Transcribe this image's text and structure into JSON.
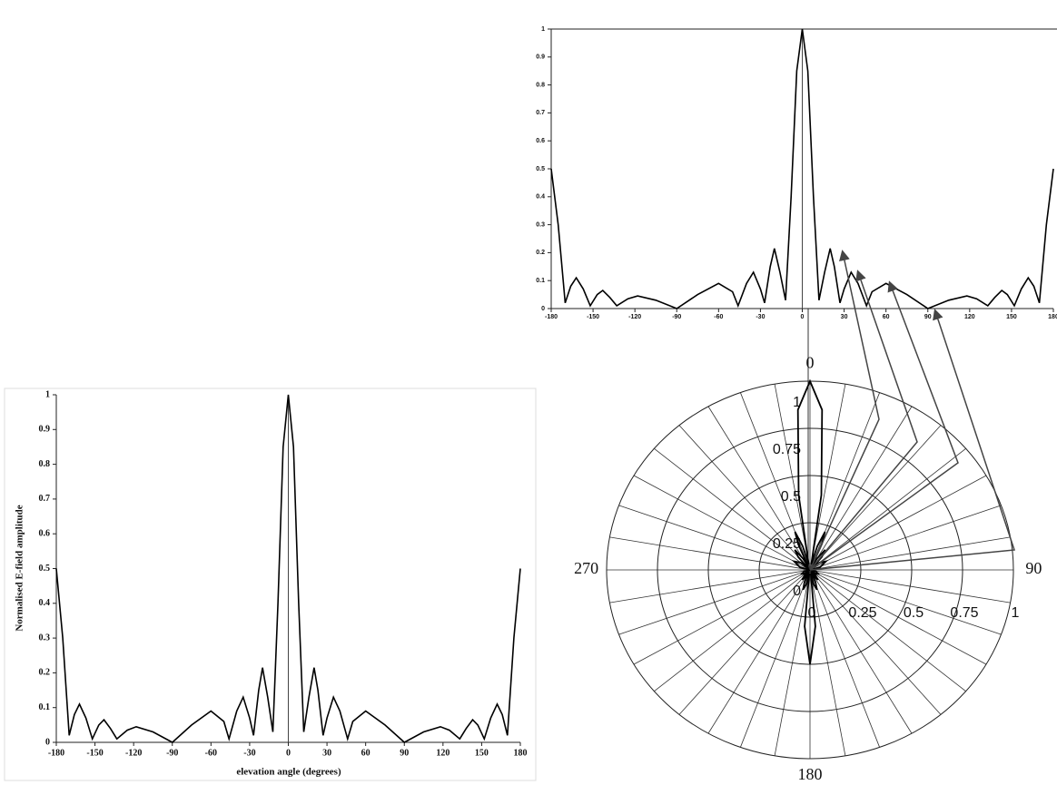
{
  "chart_data": [
    {
      "type": "line",
      "y_label": "Normalised E-field amplitude",
      "x_label": "elevation angle (degrees)",
      "x": [
        -180,
        -175,
        -170,
        -166,
        -162,
        -157,
        -152,
        -147,
        -143,
        -138,
        -133,
        -125,
        -118,
        -105,
        -90,
        -75,
        -60,
        -50,
        -46,
        -40,
        -35,
        -30,
        -27,
        -23,
        -20,
        -16,
        -12,
        -8,
        -4,
        0,
        4,
        8,
        12,
        16,
        20,
        23,
        27,
        30,
        35,
        40,
        46,
        50,
        60,
        75,
        90,
        105,
        118,
        125,
        133,
        138,
        143,
        147,
        152,
        157,
        162,
        166,
        170,
        175,
        180
      ],
      "values": [
        0.5,
        0.3,
        0.02,
        0.08,
        0.11,
        0.07,
        0.01,
        0.05,
        0.065,
        0.04,
        0.01,
        0.035,
        0.045,
        0.03,
        0.0,
        0.05,
        0.09,
        0.06,
        0.01,
        0.09,
        0.13,
        0.07,
        0.02,
        0.15,
        0.215,
        0.13,
        0.03,
        0.4,
        0.85,
        1,
        0.85,
        0.4,
        0.03,
        0.13,
        0.215,
        0.15,
        0.02,
        0.07,
        0.13,
        0.09,
        0.01,
        0.06,
        0.09,
        0.05,
        0.0,
        0.03,
        0.045,
        0.035,
        0.01,
        0.04,
        0.065,
        0.05,
        0.01,
        0.07,
        0.11,
        0.08,
        0.02,
        0.3,
        0.5
      ],
      "color": "#000000",
      "xlim": [
        -180,
        180
      ],
      "ylim": [
        0,
        1
      ],
      "xticks": [
        -180,
        -150,
        -120,
        -90,
        -60,
        -30,
        0,
        30,
        60,
        90,
        120,
        150,
        180
      ],
      "yticks": [
        0,
        0.1,
        0.2,
        0.3,
        0.4,
        0.5,
        0.6,
        0.7,
        0.8,
        0.9,
        1
      ]
    },
    {
      "type": "line",
      "x": [
        -180,
        -175,
        -170,
        -166,
        -162,
        -157,
        -152,
        -147,
        -143,
        -138,
        -133,
        -125,
        -118,
        -105,
        -90,
        -75,
        -60,
        -50,
        -46,
        -40,
        -35,
        -30,
        -27,
        -23,
        -20,
        -16,
        -12,
        -8,
        -4,
        0,
        4,
        8,
        12,
        16,
        20,
        23,
        27,
        30,
        35,
        40,
        46,
        50,
        60,
        75,
        90,
        105,
        118,
        125,
        133,
        138,
        143,
        147,
        152,
        157,
        162,
        166,
        170,
        175,
        180
      ],
      "values": [
        0.5,
        0.3,
        0.02,
        0.08,
        0.11,
        0.07,
        0.01,
        0.05,
        0.065,
        0.04,
        0.01,
        0.035,
        0.045,
        0.03,
        0.0,
        0.05,
        0.09,
        0.06,
        0.01,
        0.09,
        0.13,
        0.07,
        0.02,
        0.15,
        0.215,
        0.13,
        0.03,
        0.4,
        0.85,
        1,
        0.85,
        0.4,
        0.03,
        0.13,
        0.215,
        0.15,
        0.02,
        0.07,
        0.13,
        0.09,
        0.01,
        0.06,
        0.09,
        0.05,
        0.0,
        0.03,
        0.045,
        0.035,
        0.01,
        0.04,
        0.065,
        0.05,
        0.01,
        0.07,
        0.11,
        0.08,
        0.02,
        0.3,
        0.5
      ],
      "color": "#000000",
      "xlim": [
        -180,
        180
      ],
      "ylim": [
        0,
        1
      ],
      "xticks": [
        -180,
        -150,
        -120,
        -90,
        -60,
        -30,
        0,
        30,
        60,
        90,
        120,
        150,
        180
      ],
      "yticks": [
        0,
        0.1,
        0.2,
        0.3,
        0.4,
        0.5,
        0.6,
        0.7,
        0.8,
        0.9,
        1
      ]
    },
    {
      "type": "polar",
      "x": [
        -180,
        -175,
        -170,
        -166,
        -162,
        -157,
        -152,
        -147,
        -143,
        -138,
        -133,
        -125,
        -118,
        -105,
        -90,
        -75,
        -60,
        -50,
        -46,
        -40,
        -35,
        -30,
        -27,
        -23,
        -20,
        -16,
        -12,
        -8,
        -4,
        0,
        4,
        8,
        12,
        16,
        20,
        23,
        27,
        30,
        35,
        40,
        46,
        50,
        60,
        75,
        90,
        105,
        118,
        125,
        133,
        138,
        143,
        147,
        152,
        157,
        162,
        166,
        170,
        175,
        180
      ],
      "values": [
        0.5,
        0.3,
        0.02,
        0.08,
        0.11,
        0.07,
        0.01,
        0.05,
        0.065,
        0.04,
        0.01,
        0.035,
        0.045,
        0.03,
        0.0,
        0.05,
        0.09,
        0.06,
        0.01,
        0.09,
        0.13,
        0.07,
        0.02,
        0.15,
        0.215,
        0.13,
        0.03,
        0.4,
        0.85,
        1,
        0.85,
        0.4,
        0.03,
        0.13,
        0.215,
        0.15,
        0.02,
        0.07,
        0.13,
        0.09,
        0.01,
        0.06,
        0.09,
        0.05,
        0.0,
        0.03,
        0.045,
        0.035,
        0.01,
        0.04,
        0.065,
        0.05,
        0.01,
        0.07,
        0.11,
        0.08,
        0.02,
        0.3,
        0.5
      ],
      "color": "#000000",
      "rlim": [
        0,
        1
      ],
      "rticks": [
        0,
        0.25,
        0.5,
        0.75,
        1
      ],
      "thetaticks": [
        0,
        90,
        180,
        270
      ]
    }
  ]
}
